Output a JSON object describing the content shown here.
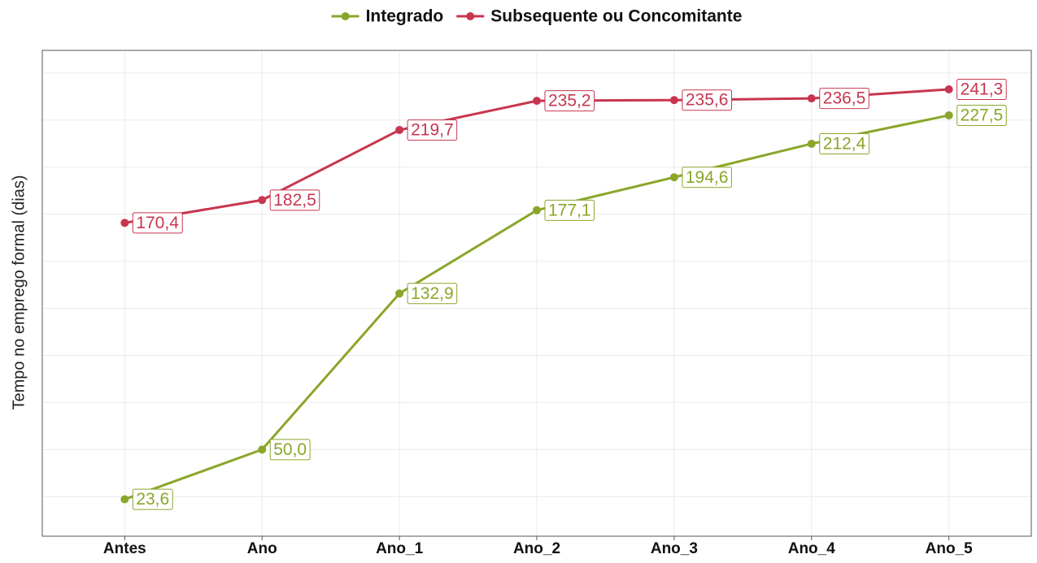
{
  "chart_data": {
    "type": "line",
    "y_label": "Tempo no emprego formal (dias)",
    "categories": [
      "Antes",
      "Ano",
      "Ano_1",
      "Ano_2",
      "Ano_3",
      "Ano_4",
      "Ano_5"
    ],
    "series": [
      {
        "name": "Integrado",
        "color": "#8aa62a",
        "values": [
          23.6,
          50.0,
          132.9,
          177.1,
          194.6,
          212.4,
          227.5
        ],
        "value_labels": [
          "23,6",
          "50,0",
          "132,9",
          "177,1",
          "194,6",
          "212,4",
          "227,5"
        ]
      },
      {
        "name": "Subsequente ou Concomitante",
        "color": "#c8354f",
        "values": [
          170.4,
          182.5,
          219.7,
          235.2,
          235.6,
          236.5,
          241.3
        ],
        "value_labels": [
          "170,4",
          "182,5",
          "219,7",
          "235,2",
          "235,6",
          "236,5",
          "241,3"
        ]
      }
    ],
    "ylim": [
      4,
      262
    ],
    "yticks": [
      25,
      50,
      75,
      100,
      125,
      150,
      175,
      200,
      225,
      250
    ],
    "ytick_labels": false,
    "grid": true,
    "legend": "top"
  }
}
